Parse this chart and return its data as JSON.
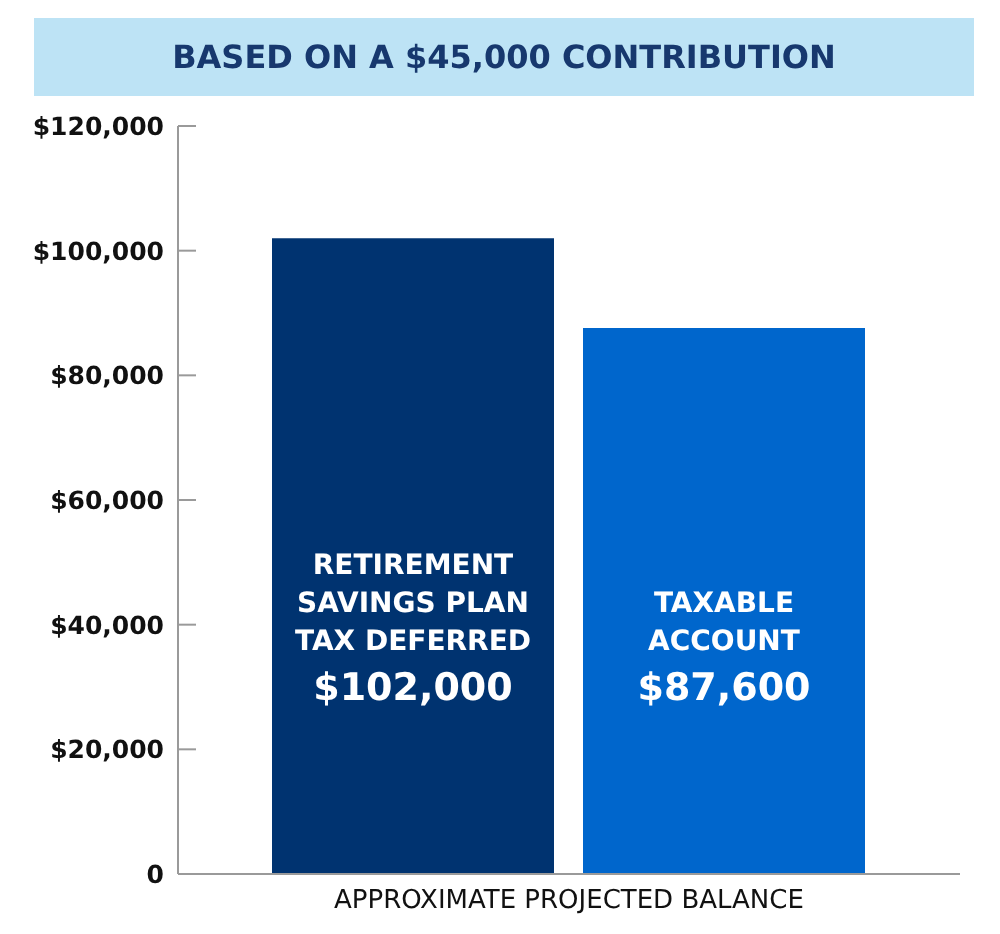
{
  "chart_data": {
    "type": "bar",
    "title": "BASED ON A $45,000 CONTRIBUTION",
    "xlabel": "APPROXIMATE PROJECTED BALANCE",
    "categories": [
      "RETIREMENT SAVINGS PLAN TAX DEFERRED",
      "TAXABLE ACCOUNT"
    ],
    "values": [
      102000,
      87600
    ],
    "colors": [
      "#003370",
      "#0066cc"
    ],
    "value_labels": [
      "$102,000",
      "$87,600"
    ],
    "ylim": [
      0,
      120000
    ],
    "yticks": [
      0,
      {
        "value": 20000,
        "label": "$20,000"
      },
      {
        "value": 40000,
        "label": "$40,000"
      },
      {
        "value": 60000,
        "label": "$60,000"
      },
      {
        "value": 80000,
        "label": "$80,000"
      },
      {
        "value": 100000,
        "label": "$100,000"
      },
      {
        "value": 120000,
        "label": "$120,000"
      }
    ]
  }
}
